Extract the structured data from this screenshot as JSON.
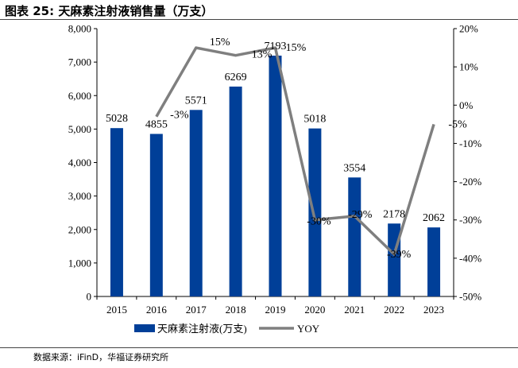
{
  "figure": {
    "title": "图表 25:  天麻素注射液销售量（万支）",
    "source": "数据来源：iFinD，华福证券研究所"
  },
  "chart_data": {
    "type": "bar",
    "categories": [
      "2015",
      "2016",
      "2017",
      "2018",
      "2019",
      "2020",
      "2021",
      "2022",
      "2023"
    ],
    "series": [
      {
        "name": "天麻素注射液(万支)",
        "type": "bar",
        "axis": "left",
        "color": "#003f98",
        "values": [
          5028,
          4855,
          5571,
          6269,
          7193,
          5018,
          3554,
          2178,
          2062
        ],
        "labels": [
          "5028",
          "4855",
          "5571",
          "6269",
          "7193",
          "5018",
          "3554",
          "2178",
          "2062"
        ]
      },
      {
        "name": "YOY",
        "type": "line",
        "axis": "right",
        "color": "#7f7f7f",
        "values": [
          null,
          -3,
          15,
          13,
          15,
          -30,
          -29,
          -39,
          -5
        ],
        "labels": [
          "",
          "-3%",
          "15%",
          "13%",
          "15%",
          "-30%",
          "-29%",
          "-39%",
          "-5%"
        ]
      }
    ],
    "y_left": {
      "min": 0,
      "max": 8000,
      "ticks": [
        "0",
        "1,000",
        "2,000",
        "3,000",
        "4,000",
        "5,000",
        "6,000",
        "7,000",
        "8,000"
      ]
    },
    "y_right": {
      "min": -50,
      "max": 20,
      "ticks": [
        "-50%",
        "-40%",
        "-30%",
        "-20%",
        "-10%",
        "0%",
        "10%",
        "20%"
      ]
    },
    "legend_position": "bottom",
    "grid": false
  }
}
